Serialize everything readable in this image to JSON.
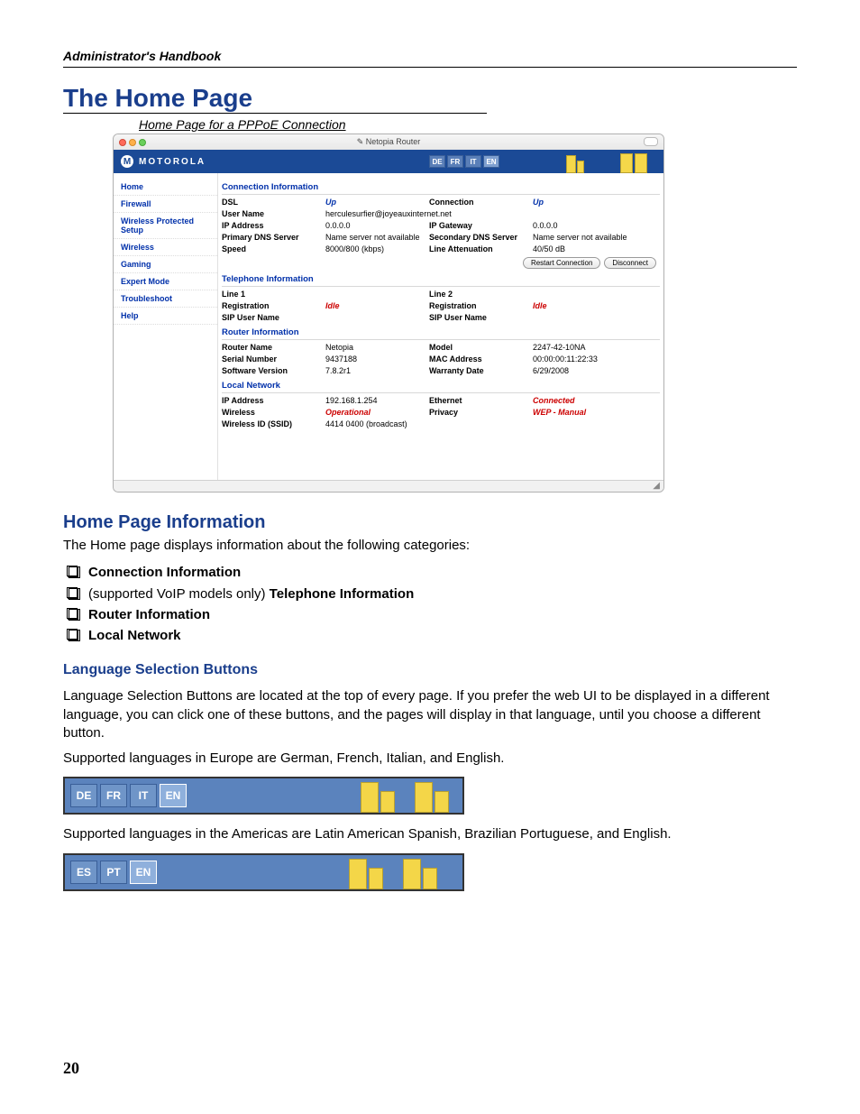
{
  "header": {
    "running": "Administrator's Handbook"
  },
  "title": "The Home Page",
  "caption": "Home Page for a PPPoE Connection",
  "page_number": "20",
  "browser": {
    "window_title": "Netopia Router",
    "brand": "MOTOROLA",
    "langs": [
      "DE",
      "FR",
      "IT",
      "EN"
    ],
    "lang_selected": "EN"
  },
  "sidebar": [
    "Home",
    "Firewall",
    "Wireless Protected Setup",
    "Wireless",
    "Gaming",
    "Expert Mode",
    "Troubleshoot",
    "Help"
  ],
  "sections": {
    "conn": {
      "title": "Connection Information",
      "rows": [
        [
          "DSL",
          "Up",
          "Connection",
          "Up",
          "blue",
          "blue"
        ],
        [
          "User Name",
          "herculesurfier@joyeauxinternet.net",
          "",
          "",
          "plainwide",
          ""
        ],
        [
          "IP Address",
          "0.0.0.0",
          "IP Gateway",
          "0.0.0.0",
          "plain",
          "plain"
        ],
        [
          "Primary DNS Server",
          "Name server not available",
          "Secondary DNS Server",
          "Name server not available",
          "plain",
          "plain"
        ],
        [
          "Speed",
          "8000/800 (kbps)",
          "Line Attenuation",
          "40/50 dB",
          "plain",
          "plain"
        ]
      ],
      "buttons": [
        "Restart Connection",
        "Disconnect"
      ]
    },
    "tel": {
      "title": "Telephone Information",
      "rows": [
        [
          "Line 1",
          "",
          "Line 2",
          "",
          "plain",
          "plain"
        ],
        [
          "Registration",
          "Idle",
          "Registration",
          "Idle",
          "redi",
          "redi"
        ],
        [
          "SIP User Name",
          "",
          "SIP User Name",
          "",
          "plain",
          "plain"
        ]
      ]
    },
    "router": {
      "title": "Router Information",
      "rows": [
        [
          "Router Name",
          "Netopia",
          "Model",
          "2247-42-10NA",
          "plain",
          "plain"
        ],
        [
          "Serial Number",
          "9437188",
          "MAC Address",
          "00:00:00:11:22:33",
          "plain",
          "plain"
        ],
        [
          "Software Version",
          "7.8.2r1",
          "Warranty Date",
          "6/29/2008",
          "plain",
          "plain"
        ]
      ]
    },
    "local": {
      "title": "Local Network",
      "rows": [
        [
          "IP Address",
          "192.168.1.254",
          "Ethernet",
          "Connected",
          "plain",
          "redi"
        ],
        [
          "Wireless",
          "Operational",
          "Privacy",
          "WEP - Manual",
          "redi",
          "redi"
        ],
        [
          "Wireless ID (SSID)",
          "4414 0400 (broadcast)",
          "",
          "",
          "plain",
          "plain"
        ]
      ]
    }
  },
  "info": {
    "heading": "Home Page Information",
    "intro": "The Home page displays information about the following categories:",
    "items": [
      {
        "bold": "Connection Information",
        "pre": ""
      },
      {
        "bold": "Telephone Information",
        "pre": "(supported VoIP models only) "
      },
      {
        "bold": "Router Information",
        "pre": ""
      },
      {
        "bold": "Local Network",
        "pre": ""
      }
    ]
  },
  "langsec": {
    "heading": "Language Selection Buttons",
    "p1": "Language Selection Buttons are located at the top of every page. If you prefer the web UI to be displayed in a different language, you can click one of these buttons, and the pages will display in that language, until you choose a different button.",
    "p2": "Supported languages in Europe are German, French, Italian, and English.",
    "p3": "Supported languages in the Americas are Latin American Spanish, Brazilian Portuguese, and English."
  },
  "banner1": {
    "buttons": [
      "DE",
      "FR",
      "IT",
      "EN"
    ],
    "selected": "EN"
  },
  "banner2": {
    "buttons": [
      "ES",
      "PT",
      "EN"
    ],
    "selected": "EN"
  },
  "colors": {
    "heading": "#1a3e8c",
    "headerbar": "#1b4a96",
    "banner_bg": "#5b83bd",
    "building": "#f4d648"
  }
}
